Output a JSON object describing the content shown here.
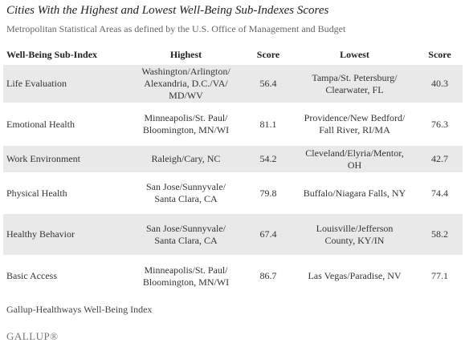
{
  "title": "Cities With the Highest and Lowest Well-Being Sub-Indexes Scores",
  "subtitle": "Metropolitan Statistical Areas as defined by the U.S. Office of Management and Budget",
  "table": {
    "header": [
      "Well-Being Sub-Index",
      "Highest",
      "Score",
      "Lowest",
      "Score"
    ],
    "rows": [
      [
        "Life Evaluation",
        "Washington/Arlington/Alexandria, D.C./VA/MD/WV",
        56.4,
        "Tampa/St. Petersburg/Clearwater, FL",
        40.3
      ],
      [
        "Emotional Health",
        "Minneapolis/St. Paul/Bloomington, MN/WI",
        81.1,
        "Providence/New Bedford/Fall River, RI/MA",
        76.3
      ],
      [
        "Work Environment",
        "Raleigh/Cary, NC",
        54.2,
        "Cleveland/Elyria/Mentor, OH",
        42.7
      ],
      [
        "Physical Health",
        "San Jose/Sunnyvale/Santa Clara, CA",
        79.8,
        "Buffalo/Niagara Falls, NY",
        74.4
      ],
      [
        "Healthy Behavior",
        "San Jose/Sunnyvale/Santa Clara, CA",
        67.4,
        "Louisville/Jefferson County, KY/IN",
        58.2
      ],
      [
        "Basic Access",
        "Minneapolis/St. Paul/Bloomington, MN/WI",
        86.7,
        "Las Vegas/Paradise, NV",
        77.1
      ]
    ]
  },
  "source": "Gallup-Healthways Well-Being Index",
  "logo": "GALLUP®"
}
